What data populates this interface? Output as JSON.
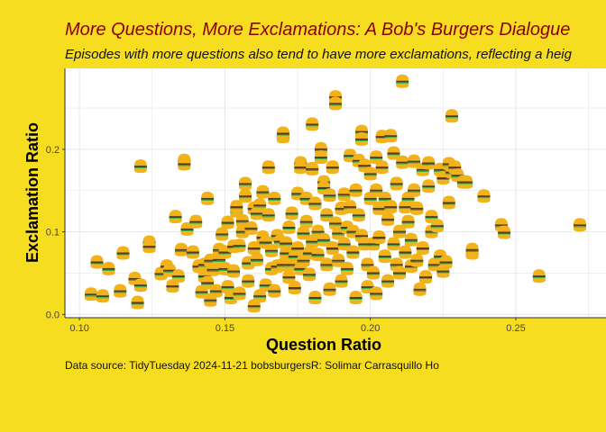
{
  "chart_data": {
    "type": "scatter",
    "title": "More Questions, More Exclamations: A Bob's Burgers Dialogue",
    "subtitle": "Episodes with more questions also tend to have more exclamations, reflecting a heig",
    "caption": "Data source: TidyTuesday 2024-11-21 bobsburgersR: Solimar Carrasquillo Ho",
    "xlabel": "Question Ratio",
    "ylabel": "Exclamation Ratio",
    "xlim": [
      0.095,
      0.281
    ],
    "ylim": [
      -0.004,
      0.298
    ],
    "xticks": [
      0.1,
      0.15,
      0.2,
      0.25
    ],
    "xtick_labels": [
      "0.10",
      "0.15",
      "0.20",
      "0.25"
    ],
    "yticks": [
      0.0,
      0.1,
      0.2
    ],
    "ytick_labels": [
      "0.0",
      "0.1",
      "0.2"
    ],
    "grid": true,
    "marker": "burger",
    "colors": {
      "background": "#f7dd1f",
      "panel": "#ffffff",
      "grid": "#e6e6e6",
      "bun": "#f2b21a",
      "title": "#8b0000"
    },
    "points": [
      [
        0.104,
        0.024
      ],
      [
        0.106,
        0.063
      ],
      [
        0.108,
        0.022
      ],
      [
        0.11,
        0.055
      ],
      [
        0.114,
        0.028
      ],
      [
        0.115,
        0.074
      ],
      [
        0.119,
        0.043
      ],
      [
        0.12,
        0.014
      ],
      [
        0.121,
        0.179
      ],
      [
        0.121,
        0.035
      ],
      [
        0.124,
        0.087
      ],
      [
        0.124,
        0.082
      ],
      [
        0.128,
        0.049
      ],
      [
        0.13,
        0.058
      ],
      [
        0.131,
        0.053
      ],
      [
        0.132,
        0.034
      ],
      [
        0.133,
        0.118
      ],
      [
        0.134,
        0.046
      ],
      [
        0.135,
        0.078
      ],
      [
        0.136,
        0.186
      ],
      [
        0.136,
        0.182
      ],
      [
        0.137,
        0.103
      ],
      [
        0.139,
        0.075
      ],
      [
        0.14,
        0.112
      ],
      [
        0.141,
        0.058
      ],
      [
        0.142,
        0.027
      ],
      [
        0.143,
        0.06
      ],
      [
        0.143,
        0.046
      ],
      [
        0.144,
        0.038
      ],
      [
        0.144,
        0.14
      ],
      [
        0.145,
        0.017
      ],
      [
        0.145,
        0.065
      ],
      [
        0.146,
        0.054
      ],
      [
        0.147,
        0.028
      ],
      [
        0.148,
        0.078
      ],
      [
        0.148,
        0.066
      ],
      [
        0.149,
        0.097
      ],
      [
        0.15,
        0.075
      ],
      [
        0.15,
        0.055
      ],
      [
        0.151,
        0.111
      ],
      [
        0.151,
        0.033
      ],
      [
        0.152,
        0.02
      ],
      [
        0.153,
        0.082
      ],
      [
        0.153,
        0.052
      ],
      [
        0.154,
        0.125
      ],
      [
        0.154,
        0.13
      ],
      [
        0.155,
        0.083
      ],
      [
        0.155,
        0.025
      ],
      [
        0.156,
        0.1
      ],
      [
        0.156,
        0.113
      ],
      [
        0.157,
        0.158
      ],
      [
        0.157,
        0.143
      ],
      [
        0.158,
        0.062
      ],
      [
        0.158,
        0.04
      ],
      [
        0.159,
        0.104
      ],
      [
        0.16,
        0.128
      ],
      [
        0.16,
        0.08
      ],
      [
        0.16,
        0.01
      ],
      [
        0.161,
        0.122
      ],
      [
        0.161,
        0.066
      ],
      [
        0.162,
        0.132
      ],
      [
        0.162,
        0.022
      ],
      [
        0.163,
        0.093
      ],
      [
        0.163,
        0.148
      ],
      [
        0.164,
        0.087
      ],
      [
        0.164,
        0.035
      ],
      [
        0.165,
        0.178
      ],
      [
        0.165,
        0.12
      ],
      [
        0.166,
        0.055
      ],
      [
        0.166,
        0.077
      ],
      [
        0.167,
        0.028
      ],
      [
        0.167,
        0.14
      ],
      [
        0.168,
        0.058
      ],
      [
        0.168,
        0.095
      ],
      [
        0.169,
        0.088
      ],
      [
        0.17,
        0.215
      ],
      [
        0.17,
        0.219
      ],
      [
        0.17,
        0.06
      ],
      [
        0.171,
        0.074
      ],
      [
        0.171,
        0.086
      ],
      [
        0.172,
        0.045
      ],
      [
        0.172,
        0.105
      ],
      [
        0.173,
        0.122
      ],
      [
        0.173,
        0.06
      ],
      [
        0.174,
        0.07
      ],
      [
        0.174,
        0.032
      ],
      [
        0.175,
        0.146
      ],
      [
        0.175,
        0.08
      ],
      [
        0.176,
        0.183
      ],
      [
        0.176,
        0.178
      ],
      [
        0.176,
        0.055
      ],
      [
        0.177,
        0.098
      ],
      [
        0.177,
        0.065
      ],
      [
        0.178,
        0.112
      ],
      [
        0.178,
        0.14
      ],
      [
        0.179,
        0.074
      ],
      [
        0.179,
        0.048
      ],
      [
        0.18,
        0.088
      ],
      [
        0.18,
        0.176
      ],
      [
        0.18,
        0.23
      ],
      [
        0.181,
        0.02
      ],
      [
        0.181,
        0.134
      ],
      [
        0.182,
        0.1
      ],
      [
        0.182,
        0.072
      ],
      [
        0.183,
        0.2
      ],
      [
        0.183,
        0.19
      ],
      [
        0.184,
        0.16
      ],
      [
        0.184,
        0.153
      ],
      [
        0.184,
        0.09
      ],
      [
        0.185,
        0.12
      ],
      [
        0.185,
        0.06
      ],
      [
        0.186,
        0.03
      ],
      [
        0.186,
        0.144
      ],
      [
        0.187,
        0.08
      ],
      [
        0.187,
        0.178
      ],
      [
        0.188,
        0.11
      ],
      [
        0.188,
        0.263
      ],
      [
        0.188,
        0.255
      ],
      [
        0.189,
        0.098
      ],
      [
        0.189,
        0.065
      ],
      [
        0.19,
        0.04
      ],
      [
        0.19,
        0.128
      ],
      [
        0.191,
        0.145
      ],
      [
        0.191,
        0.085
      ],
      [
        0.192,
        0.105
      ],
      [
        0.192,
        0.055
      ],
      [
        0.193,
        0.192
      ],
      [
        0.193,
        0.13
      ],
      [
        0.194,
        0.1
      ],
      [
        0.194,
        0.075
      ],
      [
        0.195,
        0.02
      ],
      [
        0.195,
        0.15
      ],
      [
        0.196,
        0.12
      ],
      [
        0.196,
        0.186
      ],
      [
        0.197,
        0.221
      ],
      [
        0.197,
        0.212
      ],
      [
        0.197,
        0.095
      ],
      [
        0.198,
        0.18
      ],
      [
        0.198,
        0.085
      ],
      [
        0.199,
        0.06
      ],
      [
        0.199,
        0.033
      ],
      [
        0.2,
        0.17
      ],
      [
        0.2,
        0.14
      ],
      [
        0.201,
        0.085
      ],
      [
        0.201,
        0.05
      ],
      [
        0.202,
        0.19
      ],
      [
        0.202,
        0.15
      ],
      [
        0.202,
        0.025
      ],
      [
        0.203,
        0.128
      ],
      [
        0.203,
        0.093
      ],
      [
        0.204,
        0.178
      ],
      [
        0.204,
        0.215
      ],
      [
        0.205,
        0.07
      ],
      [
        0.205,
        0.14
      ],
      [
        0.206,
        0.115
      ],
      [
        0.206,
        0.04
      ],
      [
        0.207,
        0.216
      ],
      [
        0.207,
        0.13
      ],
      [
        0.208,
        0.195
      ],
      [
        0.208,
        0.085
      ],
      [
        0.209,
        0.06
      ],
      [
        0.209,
        0.158
      ],
      [
        0.21,
        0.1
      ],
      [
        0.21,
        0.05
      ],
      [
        0.211,
        0.282
      ],
      [
        0.211,
        0.184
      ],
      [
        0.212,
        0.13
      ],
      [
        0.212,
        0.075
      ],
      [
        0.213,
        0.14
      ],
      [
        0.213,
        0.112
      ],
      [
        0.214,
        0.09
      ],
      [
        0.214,
        0.058
      ],
      [
        0.215,
        0.185
      ],
      [
        0.215,
        0.15
      ],
      [
        0.216,
        0.128
      ],
      [
        0.216,
        0.065
      ],
      [
        0.217,
        0.03
      ],
      [
        0.218,
        0.08
      ],
      [
        0.218,
        0.175
      ],
      [
        0.219,
        0.045
      ],
      [
        0.22,
        0.183
      ],
      [
        0.22,
        0.155
      ],
      [
        0.221,
        0.118
      ],
      [
        0.221,
        0.1
      ],
      [
        0.222,
        0.06
      ],
      [
        0.223,
        0.107
      ],
      [
        0.224,
        0.07
      ],
      [
        0.224,
        0.175
      ],
      [
        0.225,
        0.165
      ],
      [
        0.225,
        0.052
      ],
      [
        0.226,
        0.063
      ],
      [
        0.227,
        0.135
      ],
      [
        0.227,
        0.182
      ],
      [
        0.228,
        0.24
      ],
      [
        0.228,
        0.172
      ],
      [
        0.229,
        0.178
      ],
      [
        0.23,
        0.168
      ],
      [
        0.232,
        0.16
      ],
      [
        0.233,
        0.16
      ],
      [
        0.235,
        0.074
      ],
      [
        0.235,
        0.078
      ],
      [
        0.239,
        0.143
      ],
      [
        0.245,
        0.108
      ],
      [
        0.246,
        0.099
      ],
      [
        0.258,
        0.046
      ],
      [
        0.272,
        0.108
      ]
    ]
  }
}
